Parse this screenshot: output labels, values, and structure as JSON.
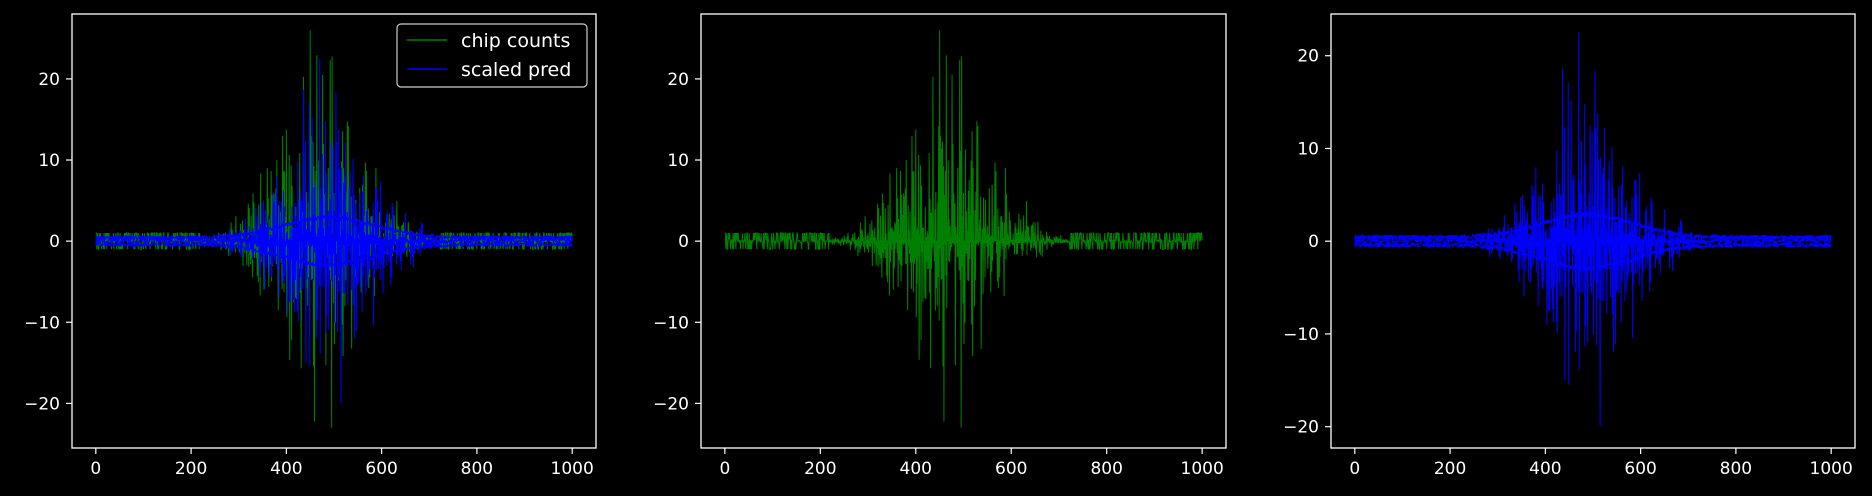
{
  "figure": {
    "background": "#000000",
    "axis_color": "#ffffff"
  },
  "chart_data": [
    {
      "type": "line",
      "title": "",
      "xlabel": "",
      "ylabel": "",
      "xlim": [
        -50,
        1050
      ],
      "ylim": [
        -25.5,
        28
      ],
      "xticks": [
        0,
        200,
        400,
        600,
        800,
        1000
      ],
      "yticks": [
        -20,
        -10,
        0,
        10,
        20
      ],
      "grid": false,
      "legend": {
        "placement": "top-right",
        "entries": [
          "chip counts",
          "scaled pred"
        ]
      },
      "series": [
        {
          "name": "chip counts",
          "color": "#008000",
          "source": "chip_counts"
        },
        {
          "name": "scaled pred",
          "color": "#0000ff",
          "source": "scaled_pred"
        }
      ]
    },
    {
      "type": "line",
      "title": "",
      "xlabel": "",
      "ylabel": "",
      "xlim": [
        -50,
        1050
      ],
      "ylim": [
        -25.5,
        28
      ],
      "xticks": [
        0,
        200,
        400,
        600,
        800,
        1000
      ],
      "yticks": [
        -20,
        -10,
        0,
        10,
        20
      ],
      "grid": false,
      "series": [
        {
          "color": "#008000",
          "source": "chip_counts"
        }
      ]
    },
    {
      "type": "line",
      "title": "",
      "xlabel": "",
      "ylabel": "",
      "xlim": [
        -50,
        1050
      ],
      "ylim": [
        -22.3,
        24.5
      ],
      "xticks": [
        0,
        200,
        400,
        600,
        800,
        1000
      ],
      "yticks": [
        -20,
        -10,
        0,
        10,
        20
      ],
      "grid": false,
      "series": [
        {
          "color": "#0000ff",
          "source": "scaled_pred"
        }
      ]
    }
  ],
  "series_profiles": {
    "chip_counts": {
      "x_range": [
        0,
        1000
      ],
      "points": 1001,
      "background_amplitude": 1,
      "peak_center": 470,
      "peak_width": 90,
      "peak_max": 26,
      "peak_min": -23
    },
    "scaled_pred": {
      "x_range": [
        0,
        1000
      ],
      "points": 1001,
      "background_amplitude": 0.6,
      "peak_center": 490,
      "peak_width": 95,
      "peak_max": 22.5,
      "peak_min": -20
    }
  }
}
